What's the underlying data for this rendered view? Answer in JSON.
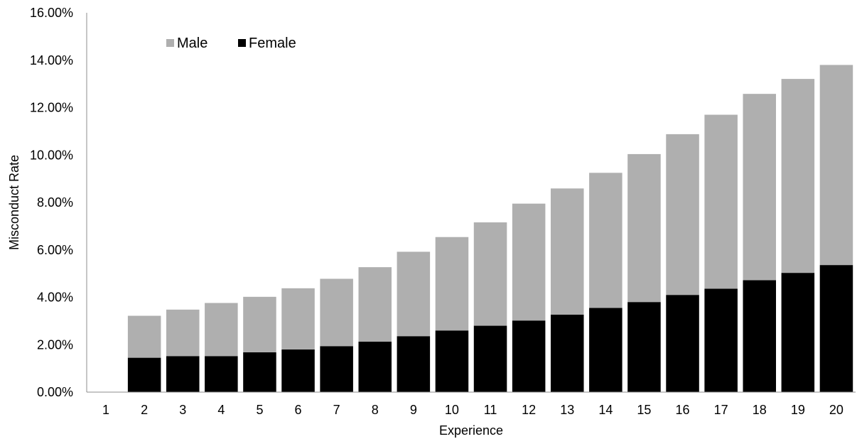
{
  "chart_data": {
    "type": "bar",
    "stacked": true,
    "title": "",
    "xlabel": "Experience",
    "ylabel": "Misconduct Rate",
    "categories": [
      "1",
      "2",
      "3",
      "4",
      "5",
      "6",
      "7",
      "8",
      "9",
      "10",
      "11",
      "12",
      "13",
      "14",
      "15",
      "16",
      "17",
      "18",
      "19",
      "20"
    ],
    "series": [
      {
        "name": "Female",
        "color": "#000000",
        "values": [
          0,
          1.45,
          1.52,
          1.52,
          1.68,
          1.8,
          1.94,
          2.13,
          2.36,
          2.6,
          2.8,
          3.02,
          3.27,
          3.55,
          3.8,
          4.1,
          4.36,
          4.72,
          5.03,
          5.36
        ]
      },
      {
        "name": "Male",
        "color": "#afafaf",
        "values": [
          0,
          1.77,
          1.96,
          2.24,
          2.34,
          2.58,
          2.84,
          3.14,
          3.56,
          3.94,
          4.36,
          4.93,
          5.32,
          5.7,
          6.24,
          6.78,
          7.34,
          7.86,
          8.18,
          8.44
        ]
      }
    ],
    "ylim": [
      0,
      16
    ],
    "y_ticks": [
      "0.00%",
      "2.00%",
      "4.00%",
      "6.00%",
      "8.00%",
      "10.00%",
      "12.00%",
      "14.00%",
      "16.00%"
    ],
    "legend": {
      "position": "top-left",
      "entries": [
        "Male",
        "Female"
      ]
    },
    "grid": false
  }
}
